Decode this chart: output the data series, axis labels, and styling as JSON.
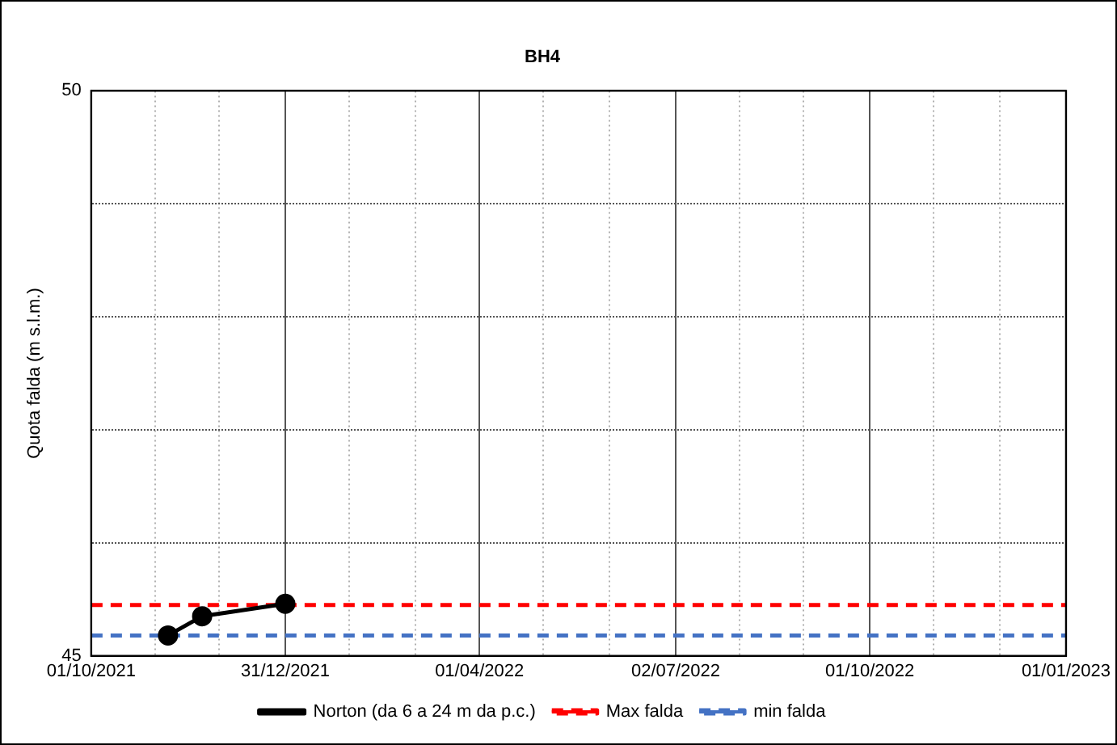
{
  "chart_data": {
    "type": "line",
    "title": "BH4",
    "ylabel": "Quota falda (m s.l.m.)",
    "xlim": [
      "2021-10-01",
      "2023-01-01"
    ],
    "xticks": [
      {
        "value": "2021-10-01",
        "label": "01/10/2021"
      },
      {
        "value": "2021-10-31",
        "label": null
      },
      {
        "value": "2021-11-30",
        "label": null
      },
      {
        "value": "2021-12-31",
        "label": "31/12/2021"
      },
      {
        "value": "2022-01-30",
        "label": null
      },
      {
        "value": "2022-03-02",
        "label": null
      },
      {
        "value": "2022-04-01",
        "label": "01/04/2022"
      },
      {
        "value": "2022-05-01",
        "label": null
      },
      {
        "value": "2022-06-01",
        "label": null
      },
      {
        "value": "2022-07-02",
        "label": "02/07/2022"
      },
      {
        "value": "2022-08-01",
        "label": null
      },
      {
        "value": "2022-08-31",
        "label": null
      },
      {
        "value": "2022-10-01",
        "label": "01/10/2022"
      },
      {
        "value": "2022-10-31",
        "label": null
      },
      {
        "value": "2022-12-01",
        "label": null
      },
      {
        "value": "2023-01-01",
        "label": "01/01/2023"
      }
    ],
    "ylim": [
      45,
      50
    ],
    "yticks": [
      45,
      {
        "value": 46,
        "label": null
      },
      {
        "value": 47,
        "label": null
      },
      {
        "value": 48,
        "label": null
      },
      {
        "value": 49,
        "label": null
      },
      50
    ],
    "grid": true,
    "legend": "bottom",
    "series": [
      {
        "name": "Norton (da 6 a 24 m da p.c.)",
        "color": "#000000",
        "marker": "circle",
        "line_style": "solid",
        "x": [
          "2021-11-06",
          "2021-11-22",
          "2021-12-31"
        ],
        "values": [
          45.18,
          45.35,
          45.46
        ]
      },
      {
        "name": "Max falda",
        "color": "#ff0000",
        "marker": "none",
        "line_style": "dashed",
        "x": [
          "2021-10-01",
          "2023-01-01"
        ],
        "values": [
          45.45,
          45.45
        ]
      },
      {
        "name": "min falda",
        "color": "#4472c4",
        "marker": "none",
        "line_style": "dashed",
        "x": [
          "2021-10-01",
          "2023-01-01"
        ],
        "values": [
          45.18,
          45.18
        ]
      }
    ]
  }
}
